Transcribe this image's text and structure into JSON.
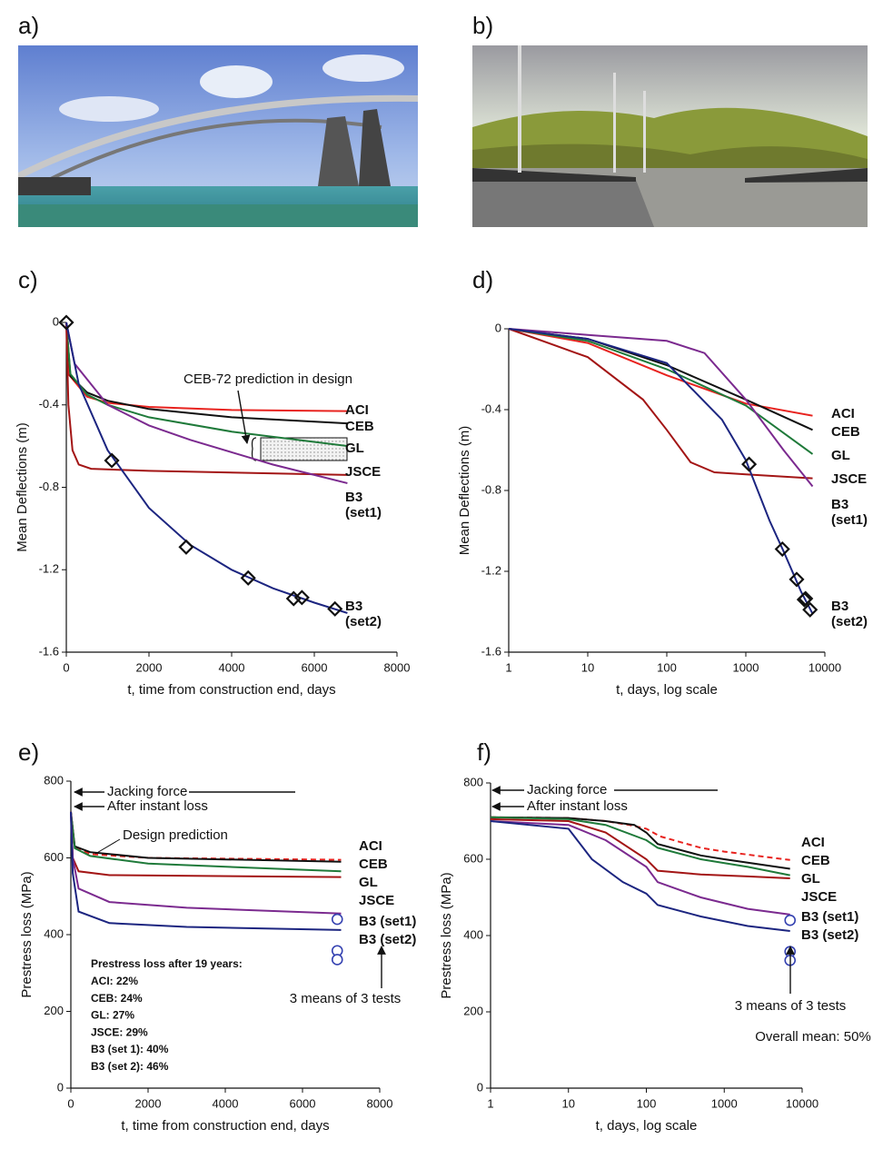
{
  "photos": [
    {
      "label": "a)"
    },
    {
      "label": "b)"
    }
  ],
  "chart_data": [
    {
      "type": "line",
      "panel_label": "c)",
      "xlabel": "t, time from construction end, days",
      "ylabel": "Mean Deflections (m)",
      "xscale": "linear",
      "xlim": [
        0,
        8000
      ],
      "ylim": [
        -1.6,
        0
      ],
      "xticks": [
        0,
        2000,
        4000,
        6000,
        8000
      ],
      "yticks": [
        0,
        -0.4,
        -0.8,
        -1.2,
        -1.6
      ],
      "annotations": [
        "CEB-72 prediction in design"
      ],
      "series": [
        {
          "name": "ACI",
          "color": "#e8231f",
          "x": [
            0,
            50,
            500,
            1000,
            2000,
            4000,
            6800
          ],
          "values": [
            0,
            -0.25,
            -0.36,
            -0.39,
            -0.41,
            -0.425,
            -0.43
          ]
        },
        {
          "name": "CEB",
          "color": "#111111",
          "x": [
            0,
            100,
            500,
            1000,
            2000,
            4000,
            6800
          ],
          "values": [
            0,
            -0.26,
            -0.34,
            -0.38,
            -0.42,
            -0.46,
            -0.49
          ]
        },
        {
          "name": "GL",
          "color": "#1f7a3a",
          "x": [
            0,
            100,
            500,
            1000,
            2000,
            4000,
            6800
          ],
          "values": [
            0,
            -0.25,
            -0.35,
            -0.4,
            -0.46,
            -0.53,
            -0.6
          ]
        },
        {
          "name": "JSCE",
          "color": "#a31515",
          "x": [
            0,
            50,
            150,
            300,
            600,
            2000,
            6800
          ],
          "values": [
            0,
            -0.4,
            -0.62,
            -0.69,
            -0.71,
            -0.72,
            -0.74
          ]
        },
        {
          "name": "B3 (set1)",
          "color": "#7b2a8f",
          "x": [
            0,
            200,
            1000,
            2000,
            3000,
            4000,
            5000,
            6000,
            6800
          ],
          "values": [
            0,
            -0.2,
            -0.4,
            -0.5,
            -0.57,
            -0.63,
            -0.69,
            -0.74,
            -0.78
          ]
        },
        {
          "name": "B3 (set2)",
          "color": "#1c2580",
          "x": [
            0,
            300,
            1000,
            2000,
            3000,
            4000,
            5000,
            6000,
            6800
          ],
          "values": [
            0,
            -0.3,
            -0.62,
            -0.9,
            -1.08,
            -1.2,
            -1.29,
            -1.36,
            -1.41
          ]
        }
      ],
      "points": {
        "marker": "diamond",
        "color": "#111111",
        "x": [
          0,
          1100,
          2900,
          4400,
          5500,
          5700,
          6500
        ],
        "values": [
          0,
          -0.67,
          -1.09,
          -1.24,
          -1.34,
          -1.335,
          -1.39
        ]
      }
    },
    {
      "type": "line",
      "panel_label": "d)",
      "xlabel": "t, days, log scale",
      "ylabel": "Mean Deflections (m)",
      "xscale": "log",
      "xlim": [
        1,
        10000
      ],
      "ylim": [
        -1.6,
        0
      ],
      "xticks": [
        1,
        10,
        100,
        1000,
        10000
      ],
      "yticks": [
        0,
        -0.4,
        -0.8,
        -1.2,
        -1.6
      ],
      "series": [
        {
          "name": "ACI",
          "color": "#e8231f",
          "x": [
            1,
            10,
            100,
            1000,
            7000
          ],
          "values": [
            0,
            -0.07,
            -0.23,
            -0.37,
            -0.43
          ]
        },
        {
          "name": "CEB",
          "color": "#111111",
          "x": [
            1,
            10,
            100,
            1000,
            7000
          ],
          "values": [
            0,
            -0.05,
            -0.18,
            -0.35,
            -0.5
          ]
        },
        {
          "name": "GL",
          "color": "#1f7a3a",
          "x": [
            1,
            10,
            100,
            1000,
            7000
          ],
          "values": [
            0,
            -0.06,
            -0.2,
            -0.38,
            -0.62
          ]
        },
        {
          "name": "JSCE",
          "color": "#a31515",
          "x": [
            1,
            10,
            50,
            100,
            200,
            400,
            1000,
            7000
          ],
          "values": [
            0,
            -0.14,
            -0.35,
            -0.5,
            -0.66,
            -0.71,
            -0.72,
            -0.74
          ]
        },
        {
          "name": "B3 (set1)",
          "color": "#7b2a8f",
          "x": [
            1,
            10,
            100,
            300,
            1000,
            3000,
            7000
          ],
          "values": [
            0,
            -0.03,
            -0.06,
            -0.12,
            -0.35,
            -0.6,
            -0.78
          ]
        },
        {
          "name": "B3 (set2)",
          "color": "#1c2580",
          "x": [
            1,
            10,
            100,
            500,
            1000,
            2000,
            3000,
            5000,
            7000
          ],
          "values": [
            0,
            -0.05,
            -0.17,
            -0.45,
            -0.65,
            -0.95,
            -1.1,
            -1.3,
            -1.41
          ]
        }
      ],
      "points": {
        "marker": "diamond",
        "color": "#111111",
        "x": [
          1100,
          2900,
          4400,
          5500,
          5700,
          6500
        ],
        "values": [
          -0.67,
          -1.09,
          -1.24,
          -1.34,
          -1.335,
          -1.39
        ]
      }
    },
    {
      "type": "line",
      "panel_label": "e)",
      "xlabel": "t, time from construction end, days",
      "ylabel": "Prestress loss (MPa)",
      "xscale": "linear",
      "xlim": [
        0,
        8000
      ],
      "ylim": [
        0,
        800
      ],
      "xticks": [
        0,
        2000,
        4000,
        6000,
        8000
      ],
      "yticks": [
        0,
        200,
        400,
        600,
        800
      ],
      "annotations": [
        "Jacking force",
        "After instant loss",
        "Design prediction",
        "3 means of 3 tests"
      ],
      "notes": [
        "Prestress loss after 19 years:",
        "ACI: 22%",
        "CEB: 24%",
        "GL: 27%",
        "JSCE: 29%",
        "B3 (set 1): 40%",
        "B3 (set 2): 46%"
      ],
      "series": [
        {
          "name": "ACI",
          "color": "#e8231f",
          "dash": true,
          "x": [
            0,
            100,
            500,
            2000,
            7000
          ],
          "values": [
            720,
            630,
            610,
            600,
            595
          ]
        },
        {
          "name": "CEB",
          "color": "#111111",
          "x": [
            0,
            100,
            500,
            2000,
            7000
          ],
          "values": [
            720,
            630,
            615,
            600,
            590
          ]
        },
        {
          "name": "GL",
          "color": "#1f7a3a",
          "x": [
            0,
            100,
            500,
            2000,
            7000
          ],
          "values": [
            720,
            625,
            605,
            585,
            565
          ]
        },
        {
          "name": "JSCE",
          "color": "#a31515",
          "x": [
            0,
            50,
            200,
            1000,
            7000
          ],
          "values": [
            720,
            600,
            565,
            555,
            550
          ]
        },
        {
          "name": "B3 (set1)",
          "color": "#7b2a8f",
          "x": [
            0,
            50,
            200,
            1000,
            3000,
            7000
          ],
          "values": [
            720,
            600,
            520,
            485,
            470,
            455
          ]
        },
        {
          "name": "B3 (set2)",
          "color": "#1c2580",
          "x": [
            0,
            50,
            200,
            1000,
            3000,
            7000
          ],
          "values": [
            720,
            560,
            460,
            430,
            420,
            412
          ]
        }
      ],
      "points": {
        "marker": "circle",
        "color": "#3340b0",
        "x": [
          6900,
          6900,
          6900
        ],
        "values": [
          440,
          358,
          335
        ]
      }
    },
    {
      "type": "line",
      "panel_label": "f)",
      "xlabel": "t, days, log scale",
      "ylabel": "Prestress loss (MPa)",
      "xscale": "log",
      "xlim": [
        1,
        10000
      ],
      "ylim": [
        0,
        800
      ],
      "xticks": [
        1,
        10,
        100,
        1000,
        10000
      ],
      "yticks": [
        0,
        200,
        400,
        600,
        800
      ],
      "annotations": [
        "Jacking force",
        "After instant loss",
        "3 means of 3 tests",
        "Overall mean: 50%"
      ],
      "series": [
        {
          "name": "ACI",
          "color": "#e8231f",
          "dash": true,
          "x": [
            1,
            10,
            30,
            60,
            100,
            150,
            500,
            1000,
            7000
          ],
          "values": [
            710,
            708,
            700,
            690,
            680,
            660,
            630,
            620,
            598
          ]
        },
        {
          "name": "CEB",
          "color": "#111111",
          "x": [
            1,
            10,
            30,
            70,
            100,
            140,
            500,
            1000,
            7000
          ],
          "values": [
            710,
            708,
            700,
            690,
            670,
            640,
            610,
            600,
            575
          ]
        },
        {
          "name": "GL",
          "color": "#1f7a3a",
          "x": [
            1,
            10,
            30,
            100,
            140,
            500,
            2000,
            7000
          ],
          "values": [
            710,
            705,
            690,
            650,
            630,
            600,
            580,
            558
          ]
        },
        {
          "name": "JSCE",
          "color": "#a31515",
          "x": [
            1,
            10,
            30,
            100,
            140,
            500,
            2000,
            7000
          ],
          "values": [
            705,
            700,
            670,
            600,
            570,
            560,
            555,
            550
          ]
        },
        {
          "name": "B3 (set1)",
          "color": "#7b2a8f",
          "x": [
            1,
            10,
            30,
            100,
            140,
            500,
            2000,
            7000
          ],
          "values": [
            700,
            690,
            650,
            580,
            540,
            500,
            470,
            455
          ]
        },
        {
          "name": "B3 (set2)",
          "color": "#1c2580",
          "x": [
            1,
            10,
            20,
            50,
            100,
            140,
            500,
            2000,
            7000
          ],
          "values": [
            700,
            680,
            600,
            540,
            510,
            480,
            450,
            425,
            412
          ]
        }
      ],
      "points": {
        "marker": "circle",
        "color": "#3340b0",
        "x": [
          7000,
          7000,
          7000
        ],
        "values": [
          440,
          358,
          335
        ]
      }
    }
  ]
}
